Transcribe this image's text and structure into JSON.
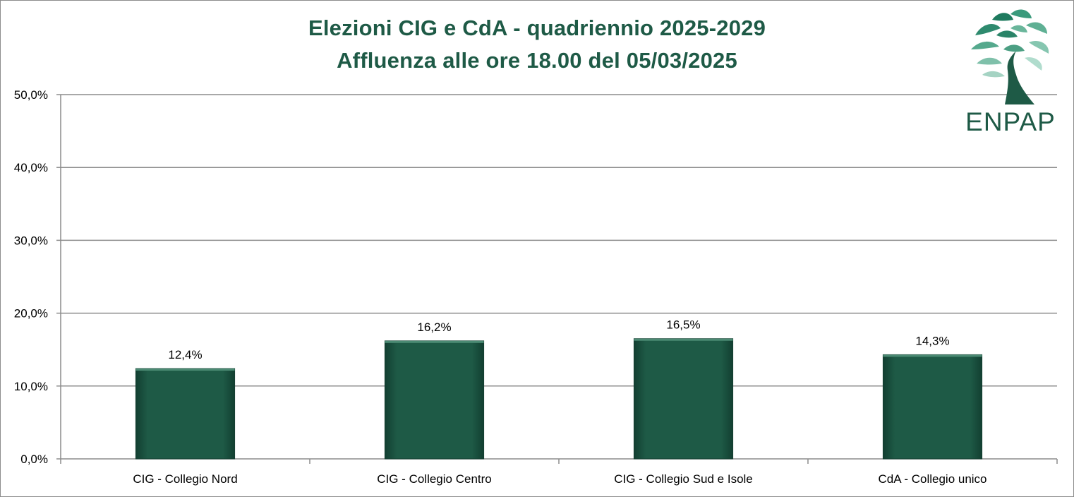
{
  "chart_data": {
    "type": "bar",
    "title": "Elezioni CIG e CdA - quadriennio 2025-2029",
    "subtitle": "Affluenza alle ore 18.00 del 05/03/2025",
    "categories": [
      "CIG - Collegio Nord",
      "CIG - Collegio Centro",
      "CIG - Collegio Sud e Isole",
      "CdA - Collegio unico"
    ],
    "values": [
      12.4,
      16.2,
      16.5,
      14.3
    ],
    "data_labels": [
      "12,4%",
      "16,2%",
      "16,5%",
      "14,3%"
    ],
    "yticks": [
      0,
      10,
      20,
      30,
      40,
      50
    ],
    "ytick_labels": [
      "0,0%",
      "10,0%",
      "20,0%",
      "30,0%",
      "40,0%",
      "50,0%"
    ],
    "ylim": [
      0,
      50
    ],
    "xlabel": "",
    "ylabel": "",
    "grid": true,
    "legend": "none",
    "bar_color": "#1e5a46",
    "title_color": "#1e5a46"
  },
  "logo": {
    "text": "ENPAP",
    "icon": "tree-icon",
    "color": "#1e5a46"
  }
}
